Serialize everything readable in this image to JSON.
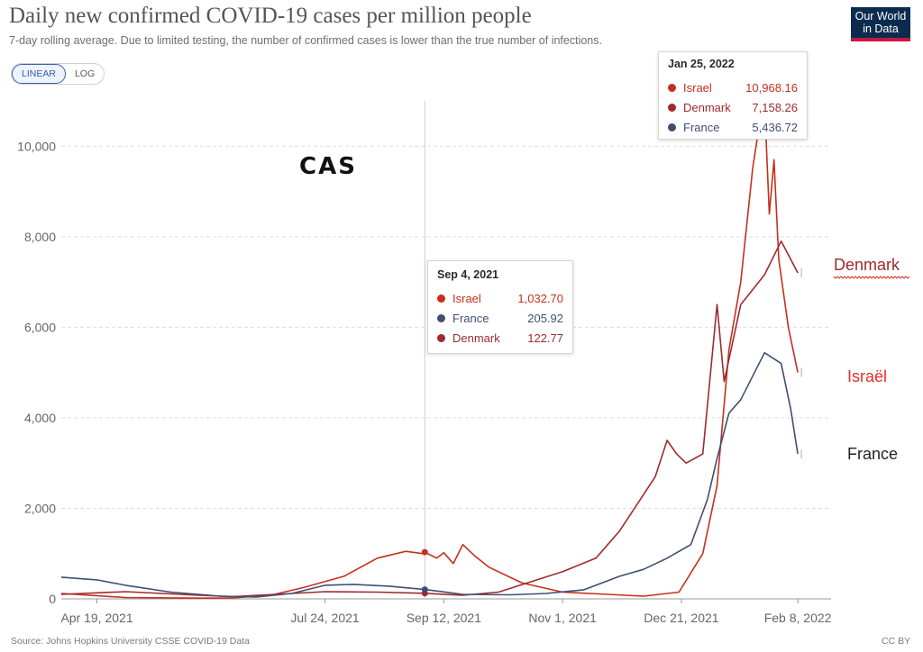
{
  "header": {
    "title": "Daily new confirmed COVID-19 cases per million people",
    "subtitle": "7-day rolling average. Due to limited testing, the number of confirmed cases is lower than the true number of infections."
  },
  "logo": {
    "line1": "Our World",
    "line2": "in Data"
  },
  "controls": {
    "linear_label": "LINEAR",
    "log_label": "LOG",
    "active": "linear"
  },
  "footer": {
    "source": "Source: Johns Hopkins University CSSE COVID-19 Data",
    "license": "CC BY"
  },
  "colors": {
    "israel": "#c5301d",
    "denmark": "#9e2a2f",
    "france": "#3f4f72",
    "accent": "#3360a9",
    "grid": "#dddddd"
  },
  "annotation": "CAS",
  "end_labels": {
    "denmark": "Denmark",
    "israel": "Israël",
    "france": "France"
  },
  "tooltips": [
    {
      "date": "Sep 4, 2021",
      "rows": [
        {
          "name": "Israel",
          "value": "1,032.70",
          "color": "#c5301d"
        },
        {
          "name": "France",
          "value": "205.92",
          "color": "#3f4f72"
        },
        {
          "name": "Denmark",
          "value": "122.77",
          "color": "#9e2a2f"
        }
      ]
    },
    {
      "date": "Jan 25, 2022",
      "rows": [
        {
          "name": "Israel",
          "value": "10,968.16",
          "color": "#c5301d"
        },
        {
          "name": "Denmark",
          "value": "7,158.26",
          "color": "#9e2a2f"
        },
        {
          "name": "France",
          "value": "5,436.72",
          "color": "#3f4f72"
        }
      ]
    }
  ],
  "chart_data": {
    "type": "line",
    "title": "Daily new confirmed COVID-19 cases per million people",
    "subtitle": "7-day rolling average. Due to limited testing, the number of confirmed cases is lower than the true number of infections.",
    "ylim": [
      0,
      11000
    ],
    "y_ticks": [
      0,
      2000,
      4000,
      6000,
      8000,
      10000
    ],
    "y_tick_labels": [
      "0",
      "2,000",
      "4,000",
      "6,000",
      "8,000",
      "10,000"
    ],
    "x_range": [
      "2021-04-04",
      "2022-02-22"
    ],
    "x_ticks": [
      "2021-04-19",
      "2021-07-24",
      "2021-09-12",
      "2021-11-01",
      "2021-12-21",
      "2022-02-08"
    ],
    "x_tick_labels": [
      "Apr 19, 2021",
      "Jul 24, 2021",
      "Sep 12, 2021",
      "Nov 1, 2021",
      "Dec 21, 2021",
      "Feb 8, 2022"
    ],
    "grid": "horizontal dashed",
    "hover_date": "2021-09-04",
    "series": [
      {
        "name": "Israel",
        "color": "#c5301d",
        "points": [
          [
            "2021-04-04",
            120
          ],
          [
            "2021-05-01",
            30
          ],
          [
            "2021-06-01",
            15
          ],
          [
            "2021-06-15",
            20
          ],
          [
            "2021-07-01",
            80
          ],
          [
            "2021-07-15",
            250
          ],
          [
            "2021-08-01",
            500
          ],
          [
            "2021-08-15",
            900
          ],
          [
            "2021-08-27",
            1050
          ],
          [
            "2021-09-03",
            1000
          ],
          [
            "2021-09-04",
            1032.7
          ],
          [
            "2021-09-09",
            900
          ],
          [
            "2021-09-12",
            1020
          ],
          [
            "2021-09-16",
            780
          ],
          [
            "2021-09-20",
            1200
          ],
          [
            "2021-09-25",
            950
          ],
          [
            "2021-10-01",
            700
          ],
          [
            "2021-10-15",
            350
          ],
          [
            "2021-11-01",
            150
          ],
          [
            "2021-11-20",
            100
          ],
          [
            "2021-12-05",
            60
          ],
          [
            "2021-12-20",
            150
          ],
          [
            "2021-12-30",
            1000
          ],
          [
            "2022-01-05",
            2500
          ],
          [
            "2022-01-10",
            5500
          ],
          [
            "2022-01-15",
            7000
          ],
          [
            "2022-01-20",
            9500
          ],
          [
            "2022-01-22",
            10200
          ],
          [
            "2022-01-25",
            10968.16
          ],
          [
            "2022-01-27",
            8500
          ],
          [
            "2022-01-29",
            9700
          ],
          [
            "2022-01-31",
            7500
          ],
          [
            "2022-02-04",
            6000
          ],
          [
            "2022-02-08",
            5000
          ]
        ]
      },
      {
        "name": "Denmark",
        "color": "#9e2a2f",
        "points": [
          [
            "2021-04-04",
            100
          ],
          [
            "2021-05-01",
            160
          ],
          [
            "2021-06-01",
            80
          ],
          [
            "2021-06-15",
            50
          ],
          [
            "2021-07-10",
            120
          ],
          [
            "2021-07-24",
            160
          ],
          [
            "2021-08-15",
            150
          ],
          [
            "2021-09-04",
            122.77
          ],
          [
            "2021-09-20",
            80
          ],
          [
            "2021-10-05",
            150
          ],
          [
            "2021-10-20",
            400
          ],
          [
            "2021-11-01",
            600
          ],
          [
            "2021-11-15",
            900
          ],
          [
            "2021-11-25",
            1500
          ],
          [
            "2021-12-05",
            2300
          ],
          [
            "2021-12-10",
            2700
          ],
          [
            "2021-12-15",
            3500
          ],
          [
            "2021-12-19",
            3200
          ],
          [
            "2021-12-23",
            3000
          ],
          [
            "2021-12-30",
            3200
          ],
          [
            "2022-01-05",
            6500
          ],
          [
            "2022-01-08",
            4800
          ],
          [
            "2022-01-15",
            6500
          ],
          [
            "2022-01-25",
            7158.26
          ],
          [
            "2022-02-01",
            7900
          ],
          [
            "2022-02-04",
            7600
          ],
          [
            "2022-02-08",
            7200
          ]
        ]
      },
      {
        "name": "France",
        "color": "#3f4f72",
        "points": [
          [
            "2021-04-04",
            480
          ],
          [
            "2021-04-19",
            420
          ],
          [
            "2021-05-01",
            300
          ],
          [
            "2021-05-20",
            150
          ],
          [
            "2021-06-10",
            60
          ],
          [
            "2021-06-25",
            40
          ],
          [
            "2021-07-10",
            120
          ],
          [
            "2021-07-24",
            300
          ],
          [
            "2021-08-05",
            320
          ],
          [
            "2021-08-20",
            280
          ],
          [
            "2021-09-04",
            205.92
          ],
          [
            "2021-09-20",
            100
          ],
          [
            "2021-10-10",
            90
          ],
          [
            "2021-10-25",
            120
          ],
          [
            "2021-11-10",
            200
          ],
          [
            "2021-11-25",
            500
          ],
          [
            "2021-12-05",
            650
          ],
          [
            "2021-12-15",
            900
          ],
          [
            "2021-12-25",
            1200
          ],
          [
            "2022-01-01",
            2200
          ],
          [
            "2022-01-05",
            3100
          ],
          [
            "2022-01-10",
            4100
          ],
          [
            "2022-01-15",
            4400
          ],
          [
            "2022-01-25",
            5436.72
          ],
          [
            "2022-02-01",
            5200
          ],
          [
            "2022-02-05",
            4200
          ],
          [
            "2022-02-08",
            3200
          ]
        ]
      }
    ]
  }
}
